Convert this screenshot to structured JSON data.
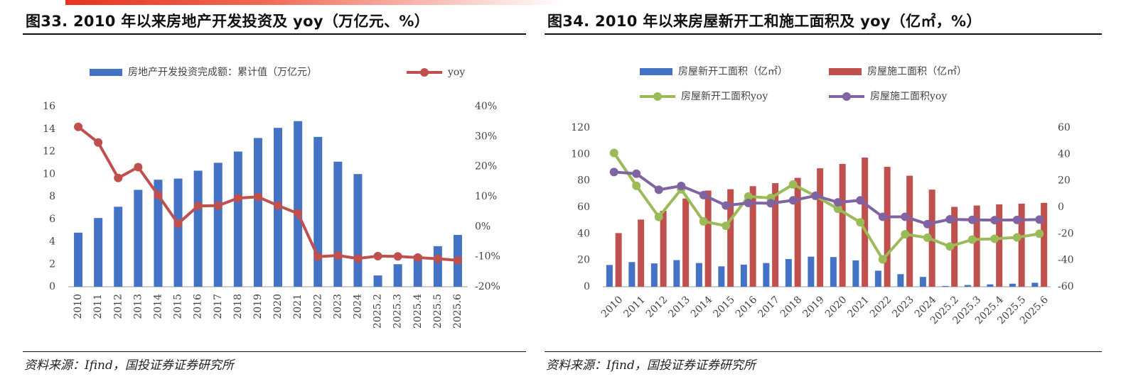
{
  "charts": {
    "left": {
      "title": "图33. 2010 年以来房地产开发投资及 yoy（万亿元、%）",
      "source": "资料来源：Ifind，国投证券证券研究所"
    },
    "right": {
      "title": "图34. 2010 年以来房屋新开工和施工面积及 yoy（亿㎡，%）",
      "source": "资料来源：Ifind，国投证券证券研究所"
    }
  },
  "colors": {
    "blue": "#4472c4",
    "red": "#c0504d",
    "green": "#9bbb59",
    "purple": "#8064a2",
    "accent": "#e8331f"
  },
  "chart_data": [
    {
      "type": "bar",
      "title": "图33. 2010 年以来房地产开发投资及 yoy（万亿元、%）",
      "categories": [
        "2010",
        "2011",
        "2012",
        "2013",
        "2014",
        "2015",
        "2016",
        "2017",
        "2018",
        "2019",
        "2020",
        "2021",
        "2022",
        "2023",
        "2024",
        "2025.2",
        "2025.3",
        "2025.4",
        "2025.5",
        "2025.6"
      ],
      "series": [
        {
          "name": "房地产开发投资完成额：累计值（万亿元）",
          "kind": "bar",
          "axis": "left",
          "values": [
            4.8,
            6.1,
            7.1,
            8.6,
            9.5,
            9.6,
            10.3,
            11.0,
            12.0,
            13.2,
            14.1,
            14.7,
            13.3,
            11.1,
            10.0,
            1.0,
            2.0,
            2.8,
            3.6,
            4.6
          ]
        },
        {
          "name": "yoy",
          "kind": "line",
          "axis": "right",
          "values": [
            33.2,
            28.0,
            16.2,
            19.8,
            10.5,
            1.0,
            6.9,
            7.0,
            9.5,
            9.9,
            7.0,
            4.4,
            -10.0,
            -9.6,
            -10.6,
            -9.8,
            -9.9,
            -10.3,
            -10.7,
            -11.2
          ]
        }
      ],
      "ylim_left": [
        0,
        16
      ],
      "yticks_left": [
        "0",
        "2",
        "4",
        "6",
        "8",
        "10",
        "12",
        "14",
        "16"
      ],
      "ylim_right": [
        -20,
        40
      ],
      "yticks_right": [
        "-20%",
        "-10%",
        "0%",
        "10%",
        "20%",
        "30%",
        "40%"
      ],
      "legend": "top"
    },
    {
      "type": "bar",
      "title": "图34. 2010 年以来房屋新开工和施工面积及 yoy（亿㎡，%）",
      "categories": [
        "2010",
        "2011",
        "2012",
        "2013",
        "2014",
        "2015",
        "2016",
        "2017",
        "2018",
        "2019",
        "2020",
        "2021",
        "2022",
        "2023",
        "2024",
        "2025.2",
        "2025.3",
        "2025.4",
        "2025.5",
        "2025.6"
      ],
      "series": [
        {
          "name": "房屋新开工面积（亿㎡）",
          "kind": "bar",
          "axis": "left",
          "values": [
            16.4,
            18.6,
            17.6,
            20.1,
            17.9,
            15.4,
            16.7,
            17.9,
            20.9,
            22.7,
            22.4,
            19.9,
            12.1,
            9.5,
            7.4,
            0.6,
            1.3,
            1.8,
            2.3,
            3.0
          ]
        },
        {
          "name": "房屋施工面积（亿㎡）",
          "kind": "bar",
          "axis": "left",
          "values": [
            40.5,
            50.7,
            57.3,
            66.6,
            72.6,
            73.6,
            75.9,
            78.2,
            82.2,
            89.4,
            92.7,
            97.5,
            90.5,
            83.8,
            73.3,
            60.3,
            61.3,
            62.2,
            62.7,
            63.3
          ]
        },
        {
          "name": "房屋新开工面积yoy",
          "kind": "line",
          "axis": "right",
          "values": [
            41.0,
            16.2,
            -7.3,
            13.5,
            -10.7,
            -14.0,
            8.1,
            7.0,
            17.2,
            8.5,
            -1.2,
            -11.4,
            -39.4,
            -20.4,
            -23.0,
            -29.6,
            -24.4,
            -23.8,
            -22.8,
            -20.0
          ]
        },
        {
          "name": "房屋施工面积yoy",
          "kind": "line",
          "axis": "right",
          "values": [
            26.6,
            25.3,
            13.2,
            16.1,
            9.2,
            1.3,
            3.2,
            3.0,
            5.2,
            8.7,
            3.7,
            5.2,
            -7.2,
            -7.2,
            -12.7,
            -9.1,
            -9.5,
            -9.7,
            -9.6,
            -9.3
          ]
        }
      ],
      "ylim_left": [
        0,
        120
      ],
      "yticks_left": [
        "0",
        "20",
        "40",
        "60",
        "80",
        "100",
        "120"
      ],
      "ylim_right": [
        -60,
        60
      ],
      "yticks_right": [
        "-60",
        "-40",
        "-20",
        "0",
        "20",
        "40",
        "60"
      ],
      "legend": "top"
    }
  ]
}
